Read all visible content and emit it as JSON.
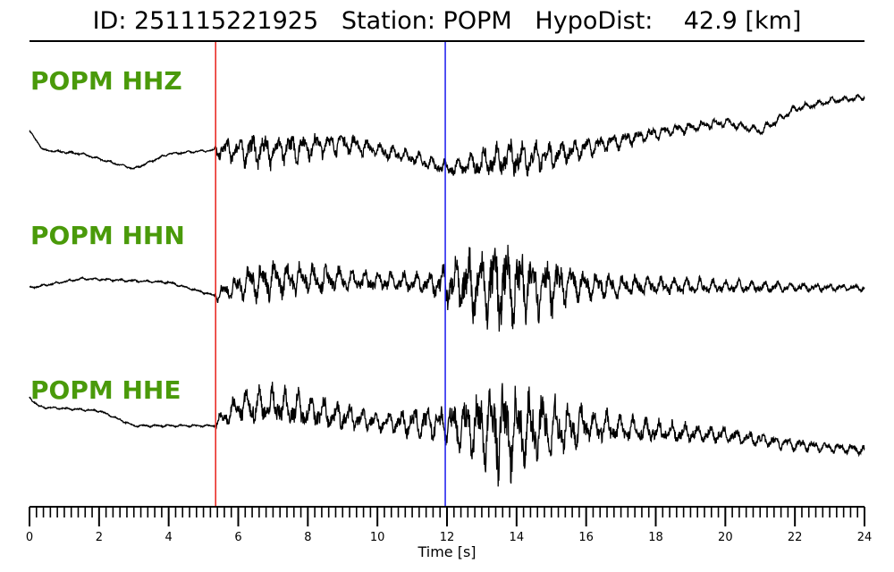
{
  "header": {
    "title": "ID: 251115221925   Station: POPM   HypoDist:    42.9 [km]"
  },
  "colors": {
    "trace": "#000000",
    "p_pick": "#e8201a",
    "s_pick": "#1a1aee",
    "label": "#4a9a0a"
  },
  "chart_data": {
    "type": "line",
    "title": "ID: 251115221925   Station: POPM   HypoDist:    42.9 [km]",
    "xlabel": "Time [s]",
    "ylabel": "",
    "xlim": [
      0,
      24
    ],
    "x_ticks": [
      "0",
      "2",
      "4",
      "6",
      "8",
      "10",
      "12",
      "14",
      "16",
      "18",
      "20",
      "22",
      "24"
    ],
    "minor_tick_step": 0.2,
    "grid": false,
    "picks": [
      {
        "phase": "P",
        "time": 5.35,
        "color": "#e8201a"
      },
      {
        "phase": "S",
        "time": 11.95,
        "color": "#1a1aee"
      }
    ],
    "series": [
      {
        "name": "POPM HHZ",
        "trend": [
          [
            0,
            0.55
          ],
          [
            0.4,
            0.05
          ],
          [
            1.5,
            -0.05
          ],
          [
            3.0,
            -0.45
          ],
          [
            4.0,
            -0.05
          ],
          [
            5.3,
            0.05
          ],
          [
            7.0,
            0.05
          ],
          [
            9.0,
            0.25
          ],
          [
            11.0,
            -0.15
          ],
          [
            12.0,
            -0.45
          ],
          [
            13.5,
            -0.2
          ],
          [
            15.0,
            -0.1
          ],
          [
            16.0,
            0.1
          ],
          [
            18.0,
            0.5
          ],
          [
            20.0,
            0.8
          ],
          [
            21.0,
            0.55
          ],
          [
            22.0,
            1.15
          ],
          [
            23.0,
            1.35
          ],
          [
            24.0,
            1.45
          ]
        ],
        "envelope": [
          [
            0,
            0.03
          ],
          [
            5.3,
            0.03
          ],
          [
            5.4,
            0.25
          ],
          [
            6.5,
            0.45
          ],
          [
            7.5,
            0.4
          ],
          [
            10.0,
            0.2
          ],
          [
            12.0,
            0.2
          ],
          [
            13.0,
            0.35
          ],
          [
            14.0,
            0.5
          ],
          [
            15.0,
            0.35
          ],
          [
            17.0,
            0.2
          ],
          [
            20.0,
            0.12
          ],
          [
            24.0,
            0.08
          ]
        ]
      },
      {
        "name": "POPM HHN",
        "trend": [
          [
            0,
            -0.1
          ],
          [
            1.5,
            0.15
          ],
          [
            4.0,
            0.05
          ],
          [
            5.3,
            -0.3
          ],
          [
            6.5,
            0.1
          ],
          [
            8.0,
            0.15
          ],
          [
            12.0,
            0.0
          ],
          [
            24.0,
            -0.1
          ]
        ],
        "envelope": [
          [
            0,
            0.03
          ],
          [
            5.3,
            0.03
          ],
          [
            5.4,
            0.2
          ],
          [
            6.5,
            0.5
          ],
          [
            7.5,
            0.45
          ],
          [
            9.0,
            0.3
          ],
          [
            11.5,
            0.25
          ],
          [
            12.0,
            0.6
          ],
          [
            13.5,
            1.3
          ],
          [
            14.0,
            1.0
          ],
          [
            15.0,
            0.7
          ],
          [
            16.0,
            0.35
          ],
          [
            18.0,
            0.25
          ],
          [
            22.0,
            0.12
          ],
          [
            24.0,
            0.08
          ]
        ]
      },
      {
        "name": "POPM HHE",
        "trend": [
          [
            0,
            0.55
          ],
          [
            0.3,
            0.3
          ],
          [
            2.0,
            0.2
          ],
          [
            3.0,
            -0.2
          ],
          [
            5.3,
            -0.2
          ],
          [
            6.0,
            0.3
          ],
          [
            7.0,
            0.35
          ],
          [
            8.0,
            0.2
          ],
          [
            10.0,
            -0.1
          ],
          [
            12.0,
            -0.15
          ],
          [
            14.0,
            -0.3
          ],
          [
            16.0,
            -0.2
          ],
          [
            18.0,
            -0.35
          ],
          [
            20.0,
            -0.45
          ],
          [
            22.0,
            -0.7
          ],
          [
            24.0,
            -0.85
          ]
        ],
        "envelope": [
          [
            0,
            0.03
          ],
          [
            5.3,
            0.03
          ],
          [
            5.4,
            0.2
          ],
          [
            6.5,
            0.5
          ],
          [
            8.0,
            0.45
          ],
          [
            10.0,
            0.25
          ],
          [
            12.0,
            0.5
          ],
          [
            13.5,
            1.2
          ],
          [
            14.5,
            1.0
          ],
          [
            15.5,
            0.6
          ],
          [
            17.0,
            0.35
          ],
          [
            20.0,
            0.2
          ],
          [
            24.0,
            0.12
          ]
        ]
      }
    ]
  }
}
